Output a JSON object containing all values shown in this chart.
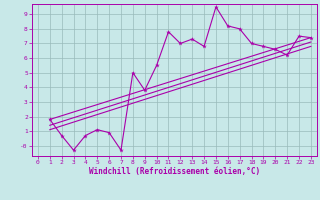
{
  "xlabel": "Windchill (Refroidissement éolien,°C)",
  "xlim": [
    -0.5,
    23.5
  ],
  "ylim": [
    -0.7,
    9.7
  ],
  "xticks": [
    0,
    1,
    2,
    3,
    4,
    5,
    6,
    7,
    8,
    9,
    10,
    11,
    12,
    13,
    14,
    15,
    16,
    17,
    18,
    19,
    20,
    21,
    22,
    23
  ],
  "yticks": [
    0,
    1,
    2,
    3,
    4,
    5,
    6,
    7,
    8,
    9
  ],
  "bg_color": "#c8e8e8",
  "line_color": "#aa00aa",
  "grid_color": "#99bbbb",
  "line1_x": [
    1,
    2,
    3,
    4,
    5,
    6,
    7,
    8,
    9,
    10,
    11,
    12,
    13,
    14,
    15,
    16,
    17,
    18,
    19,
    20,
    21,
    22,
    23
  ],
  "line1_y": [
    1.8,
    0.7,
    -0.3,
    0.7,
    1.1,
    0.9,
    -0.3,
    5.0,
    3.8,
    5.5,
    7.8,
    7.0,
    7.3,
    6.8,
    9.5,
    8.2,
    8.0,
    7.0,
    6.8,
    6.6,
    6.2,
    7.5,
    7.4
  ],
  "line2_x": [
    1,
    23
  ],
  "line2_y": [
    1.8,
    7.4
  ],
  "line3_x": [
    1,
    23
  ],
  "line3_y": [
    1.4,
    7.1
  ],
  "line4_x": [
    1,
    23
  ],
  "line4_y": [
    1.1,
    6.8
  ],
  "xlabel_fontsize": 5.5,
  "tick_fontsize": 4.5
}
